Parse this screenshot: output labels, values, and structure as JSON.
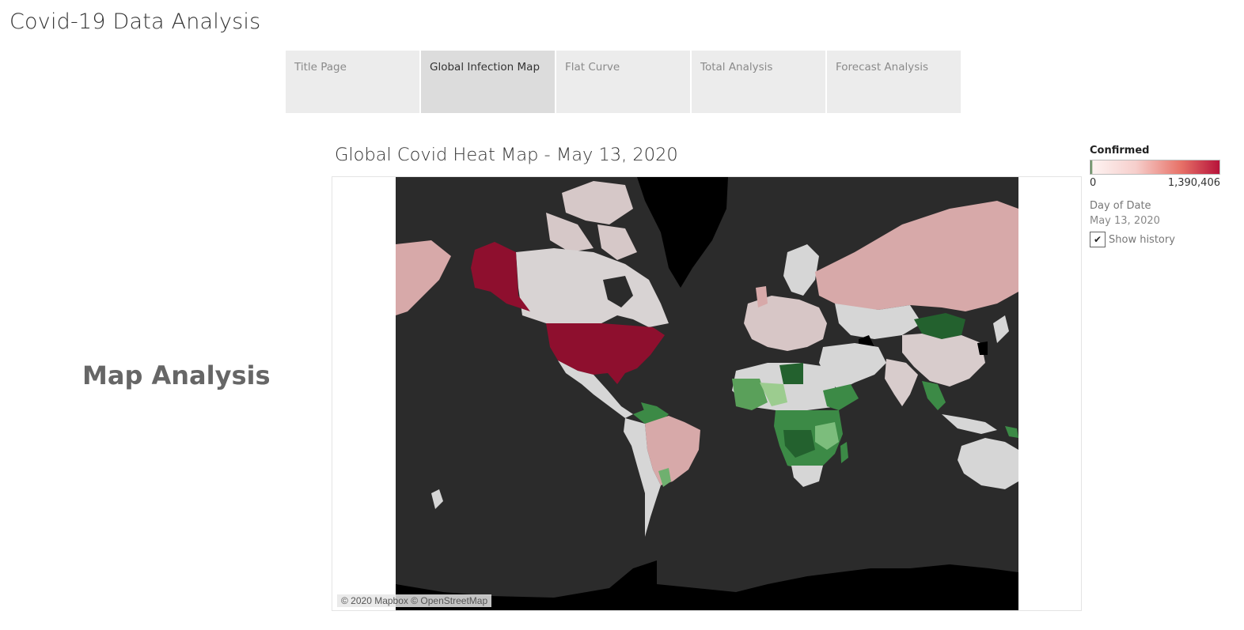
{
  "app": {
    "title": "Covid-19 Data Analysis"
  },
  "tabs": [
    {
      "label": "Title Page",
      "active": false
    },
    {
      "label": "Global Infection Map",
      "active": true
    },
    {
      "label": "Flat Curve",
      "active": false
    },
    {
      "label": "Total Analysis",
      "active": false
    },
    {
      "label": "Forecast Analysis",
      "active": false
    }
  ],
  "sidebar": {
    "heading": "Map Analysis"
  },
  "map": {
    "title": "Global Covid Heat Map - May 13, 2020",
    "attribution": "© 2020 Mapbox © OpenStreetMap",
    "ocean_color": "#2b2b2b",
    "land_color": "#d6d6d6",
    "high_color": "#8e0f2e",
    "low_color": "#2f7a3a"
  },
  "legend": {
    "title": "Confirmed",
    "min_label": "0",
    "max_label": "1,390,406",
    "min_color": "#2d6a2d",
    "max_color": "#b7133a"
  },
  "filter": {
    "label": "Day of Date",
    "value": "May 13, 2020",
    "history_label": "Show history",
    "history_checked": true
  }
}
